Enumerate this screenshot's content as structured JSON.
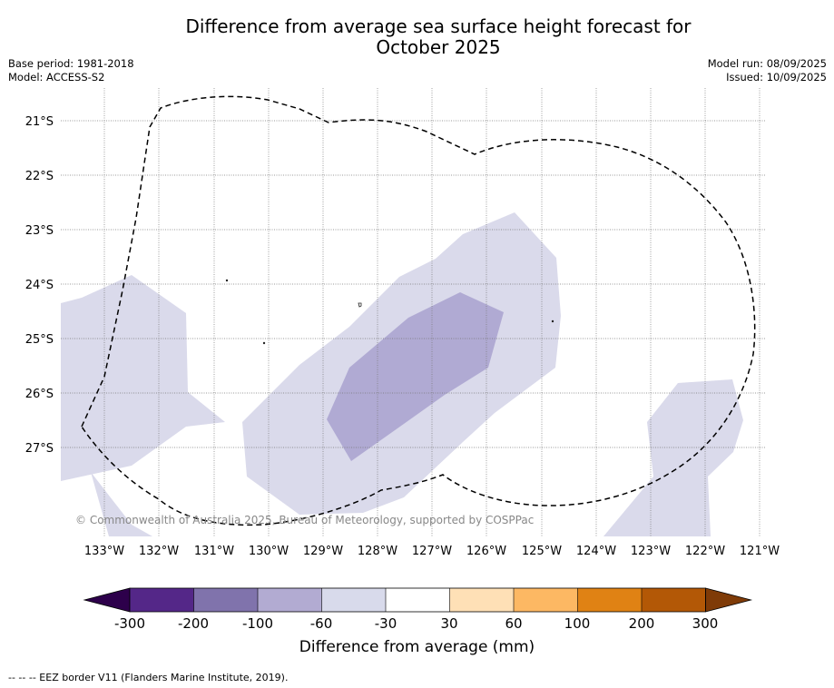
{
  "header": {
    "title_line1": "Difference from average sea surface height forecast for",
    "title_line2": "October 2025",
    "base_period": "Base period: 1981-2018",
    "model": "Model: ACCESS-S2",
    "model_run": "Model run: 08/09/2025",
    "issued": "Issued: 10/09/2025"
  },
  "map": {
    "copyright": "© Commonwealth of Australia 2025, Bureau of Meteorology, supported by COSPPac",
    "lon_labels": [
      "133°W",
      "132°W",
      "131°W",
      "130°W",
      "129°W",
      "128°W",
      "127°W",
      "126°W",
      "125°W",
      "124°W",
      "123°W",
      "122°W",
      "121°W"
    ],
    "lat_labels": [
      "21°S",
      "22°S",
      "23°S",
      "24°S",
      "25°S",
      "26°S",
      "27°S"
    ],
    "shading": {
      "minus_30_to_minus_60_color": "#dadaeb",
      "minus_60_to_minus_100_color": "#b0aad3"
    },
    "eez_border_style": "dashed"
  },
  "colorbar": {
    "tick_labels": [
      "-300",
      "-200",
      "-100",
      "-60",
      "-30",
      "30",
      "60",
      "100",
      "200",
      "300"
    ],
    "colors": [
      "#2d004b",
      "#542788",
      "#8073ac",
      "#b2abd2",
      "#d8daeb",
      "#ffffff",
      "#fee0b6",
      "#fdb863",
      "#e08214",
      "#b35806",
      "#7f3b08"
    ],
    "label": "Difference from average (mm)"
  },
  "footnote": "--  --  -- EEZ border V11 (Flanders Marine Institute, 2019)."
}
